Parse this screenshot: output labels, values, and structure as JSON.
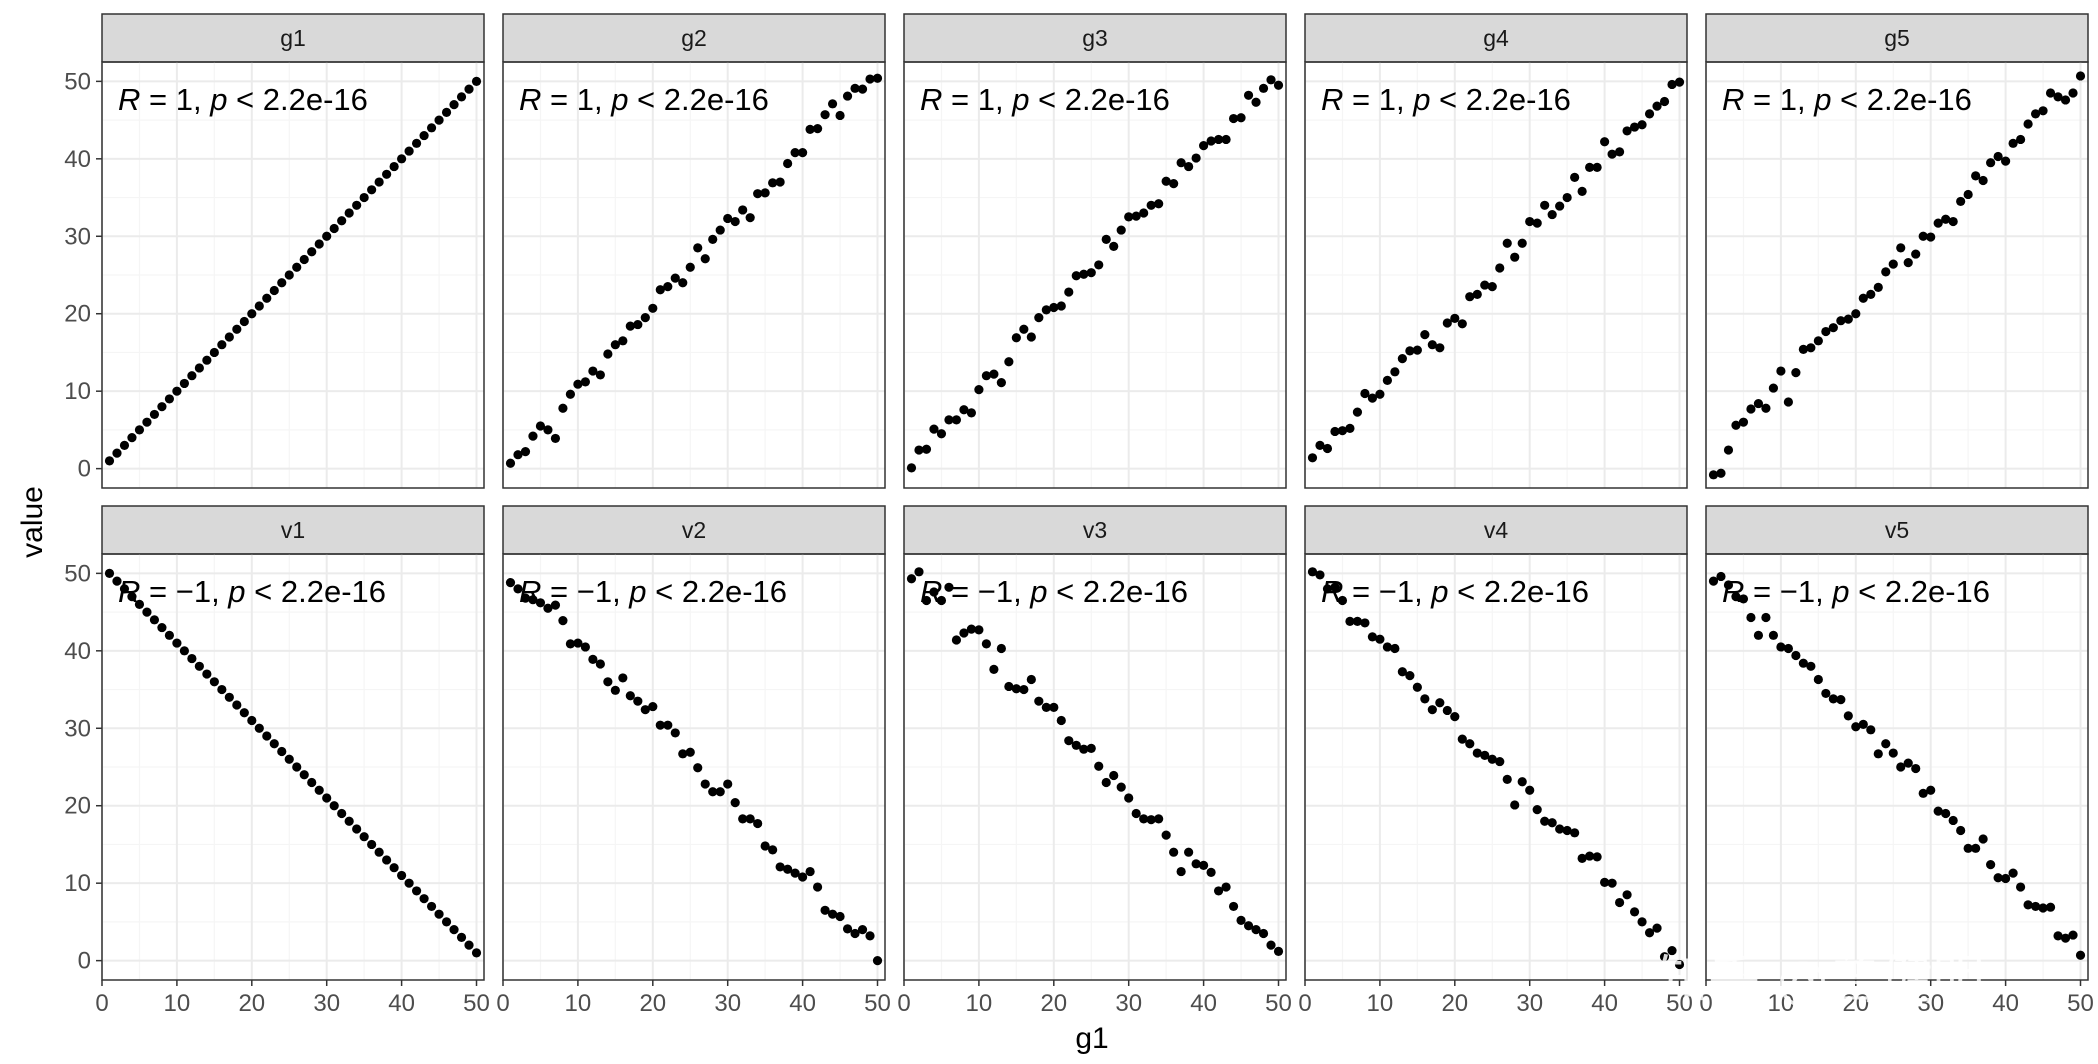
{
  "figure": {
    "x_title": "g1",
    "y_title": "value",
    "watermark": "知乎 @曾健明",
    "colors": {
      "background": "#ffffff",
      "panel_border": "#333333",
      "grid_major": "#ebebeb",
      "grid_minor": "#f5f5f5",
      "strip_fill": "#d9d9d9",
      "point": "#000000"
    }
  },
  "chart_data": [
    {
      "type": "scatter",
      "panel": "g1",
      "r_label": "R",
      "r_value": " = 1, ",
      "p_label": "p",
      "p_value": " < 2.2e-16",
      "xlim": [
        0,
        51
      ],
      "ylim": [
        -2.5,
        52.5
      ],
      "x_ticks": [
        "0",
        "10",
        "20",
        "30",
        "40",
        "50"
      ],
      "y_ticks": [
        "0",
        "10",
        "20",
        "30",
        "40",
        "50"
      ],
      "grid": true,
      "x": [
        1,
        2,
        3,
        4,
        5,
        6,
        7,
        8,
        9,
        10,
        11,
        12,
        13,
        14,
        15,
        16,
        17,
        18,
        19,
        20,
        21,
        22,
        23,
        24,
        25,
        26,
        27,
        28,
        29,
        30,
        31,
        32,
        33,
        34,
        35,
        36,
        37,
        38,
        39,
        40,
        41,
        42,
        43,
        44,
        45,
        46,
        47,
        48,
        49,
        50
      ],
      "y": [
        1,
        2,
        3,
        4,
        5,
        6,
        7,
        8,
        9,
        10,
        11,
        12,
        13,
        14,
        15,
        16,
        17,
        18,
        19,
        20,
        21,
        22,
        23,
        24,
        25,
        26,
        27,
        28,
        29,
        30,
        31,
        32,
        33,
        34,
        35,
        36,
        37,
        38,
        39,
        40,
        41,
        42,
        43,
        44,
        45,
        46,
        47,
        48,
        49,
        50
      ]
    },
    {
      "type": "scatter",
      "panel": "g2",
      "r_label": "R",
      "r_value": " = 1, ",
      "p_label": "p",
      "p_value": " < 2.2e-16",
      "xlim": [
        0,
        51
      ],
      "ylim": [
        -2.5,
        52.5
      ],
      "x_ticks": [
        "0",
        "10",
        "20",
        "30",
        "40",
        "50"
      ],
      "y_ticks": [
        "0",
        "10",
        "20",
        "30",
        "40",
        "50"
      ],
      "grid": true,
      "x": [
        1,
        2,
        3,
        4,
        5,
        6,
        7,
        8,
        9,
        10,
        11,
        12,
        13,
        14,
        15,
        16,
        17,
        18,
        19,
        20,
        21,
        22,
        23,
        24,
        25,
        26,
        27,
        28,
        29,
        30,
        31,
        32,
        33,
        34,
        35,
        36,
        37,
        38,
        39,
        40,
        41,
        42,
        43,
        44,
        45,
        46,
        47,
        48,
        49,
        50
      ],
      "y": [
        0.7,
        1.8,
        2.2,
        4.2,
        5.5,
        5.0,
        3.9,
        7.8,
        9.6,
        10.9,
        11.2,
        12.6,
        12.1,
        14.8,
        16.0,
        16.5,
        18.4,
        18.6,
        19.5,
        20.7,
        23.1,
        23.5,
        24.6,
        24.0,
        26.0,
        28.5,
        27.1,
        29.6,
        30.8,
        32.3,
        31.9,
        33.4,
        32.4,
        35.5,
        35.6,
        36.9,
        37.0,
        39.4,
        40.8,
        40.8,
        43.8,
        43.9,
        45.7,
        47.1,
        45.6,
        48.1,
        49.1,
        49.0,
        50.3,
        50.4
      ]
    },
    {
      "type": "scatter",
      "panel": "g3",
      "r_label": "R",
      "r_value": " = 1, ",
      "p_label": "p",
      "p_value": " < 2.2e-16",
      "xlim": [
        0,
        51
      ],
      "ylim": [
        -2.5,
        52.5
      ],
      "x_ticks": [
        "0",
        "10",
        "20",
        "30",
        "40",
        "50"
      ],
      "y_ticks": [
        "0",
        "10",
        "20",
        "30",
        "40",
        "50"
      ],
      "grid": true,
      "x": [
        1,
        2,
        3,
        4,
        5,
        6,
        7,
        8,
        9,
        10,
        11,
        12,
        13,
        14,
        15,
        16,
        17,
        18,
        19,
        20,
        21,
        22,
        23,
        24,
        25,
        26,
        27,
        28,
        29,
        30,
        31,
        32,
        33,
        34,
        35,
        36,
        37,
        38,
        39,
        40,
        41,
        42,
        43,
        44,
        45,
        46,
        47,
        48,
        49,
        50
      ],
      "y": [
        0.1,
        2.4,
        2.5,
        5.1,
        4.5,
        6.3,
        6.3,
        7.6,
        7.2,
        10.2,
        12.0,
        12.2,
        11.1,
        13.8,
        16.9,
        18.0,
        17.0,
        19.5,
        20.5,
        20.8,
        21.0,
        22.8,
        24.9,
        25.1,
        25.3,
        26.3,
        29.6,
        28.7,
        30.8,
        32.5,
        32.6,
        33.0,
        34.0,
        34.2,
        37.1,
        36.8,
        39.5,
        39.0,
        40.1,
        41.7,
        42.3,
        42.5,
        42.5,
        45.2,
        45.3,
        48.2,
        47.3,
        49.1,
        50.2,
        49.5
      ]
    },
    {
      "type": "scatter",
      "panel": "g4",
      "r_label": "R",
      "r_value": " = 1, ",
      "p_label": "p",
      "p_value": " < 2.2e-16",
      "xlim": [
        0,
        51
      ],
      "ylim": [
        -2.5,
        52.5
      ],
      "x_ticks": [
        "0",
        "10",
        "20",
        "30",
        "40",
        "50"
      ],
      "y_ticks": [
        "0",
        "10",
        "20",
        "30",
        "40",
        "50"
      ],
      "grid": true,
      "x": [
        1,
        2,
        3,
        4,
        5,
        6,
        7,
        8,
        9,
        10,
        11,
        12,
        13,
        14,
        15,
        16,
        17,
        18,
        19,
        20,
        21,
        22,
        23,
        24,
        25,
        26,
        27,
        28,
        29,
        30,
        31,
        32,
        33,
        34,
        35,
        36,
        37,
        38,
        39,
        40,
        41,
        42,
        43,
        44,
        45,
        46,
        47,
        48,
        49,
        50
      ],
      "y": [
        1.4,
        3.0,
        2.6,
        4.8,
        4.9,
        5.2,
        7.3,
        9.7,
        9.1,
        9.6,
        11.4,
        12.5,
        14.2,
        15.2,
        15.3,
        17.3,
        16.0,
        15.6,
        18.8,
        19.4,
        18.7,
        22.2,
        22.5,
        23.7,
        23.5,
        25.9,
        29.1,
        27.3,
        29.1,
        31.9,
        31.7,
        34.0,
        32.8,
        33.9,
        35.0,
        37.6,
        35.8,
        38.9,
        38.9,
        42.2,
        40.6,
        40.9,
        43.6,
        44.1,
        44.4,
        45.8,
        46.8,
        47.4,
        49.6,
        49.9
      ]
    },
    {
      "type": "scatter",
      "panel": "g5",
      "r_label": "R",
      "r_value": " = 1, ",
      "p_label": "p",
      "p_value": " < 2.2e-16",
      "xlim": [
        0,
        51
      ],
      "ylim": [
        -2.5,
        52.5
      ],
      "x_ticks": [
        "0",
        "10",
        "20",
        "30",
        "40",
        "50"
      ],
      "y_ticks": [
        "0",
        "10",
        "20",
        "30",
        "40",
        "50"
      ],
      "grid": true,
      "x": [
        1,
        2,
        3,
        4,
        5,
        6,
        7,
        8,
        9,
        10,
        11,
        12,
        13,
        14,
        15,
        16,
        17,
        18,
        19,
        20,
        21,
        22,
        23,
        24,
        25,
        26,
        27,
        28,
        29,
        30,
        31,
        32,
        33,
        34,
        35,
        36,
        37,
        38,
        39,
        40,
        41,
        42,
        43,
        44,
        45,
        46,
        47,
        48,
        49,
        50
      ],
      "y": [
        -0.8,
        -0.6,
        2.4,
        5.6,
        6.0,
        7.7,
        8.4,
        7.8,
        10.4,
        12.6,
        8.6,
        12.4,
        15.4,
        15.6,
        16.5,
        17.7,
        18.2,
        19.1,
        19.3,
        20.0,
        22.0,
        22.5,
        23.4,
        25.4,
        26.4,
        28.5,
        26.6,
        27.7,
        30.0,
        29.9,
        31.7,
        32.2,
        31.9,
        34.5,
        35.4,
        37.8,
        37.2,
        39.5,
        40.3,
        39.7,
        42.0,
        42.5,
        44.5,
        45.8,
        46.2,
        48.5,
        48.0,
        47.6,
        48.5,
        50.7
      ]
    },
    {
      "type": "scatter",
      "panel": "v1",
      "r_label": "R",
      "r_value": " = −1, ",
      "p_label": "p",
      "p_value": " < 2.2e-16",
      "xlim": [
        0,
        51
      ],
      "ylim": [
        -2.5,
        52.5
      ],
      "x_ticks": [
        "0",
        "10",
        "20",
        "30",
        "40",
        "50"
      ],
      "y_ticks": [
        "0",
        "10",
        "20",
        "30",
        "40",
        "50"
      ],
      "grid": true,
      "x": [
        1,
        2,
        3,
        4,
        5,
        6,
        7,
        8,
        9,
        10,
        11,
        12,
        13,
        14,
        15,
        16,
        17,
        18,
        19,
        20,
        21,
        22,
        23,
        24,
        25,
        26,
        27,
        28,
        29,
        30,
        31,
        32,
        33,
        34,
        35,
        36,
        37,
        38,
        39,
        40,
        41,
        42,
        43,
        44,
        45,
        46,
        47,
        48,
        49,
        50
      ],
      "y": [
        50,
        49,
        48,
        47,
        46,
        45,
        44,
        43,
        42,
        41,
        40,
        39,
        38,
        37,
        36,
        35,
        34,
        33,
        32,
        31,
        30,
        29,
        28,
        27,
        26,
        25,
        24,
        23,
        22,
        21,
        20,
        19,
        18,
        17,
        16,
        15,
        14,
        13,
        12,
        11,
        10,
        9,
        8,
        7,
        6,
        5,
        4,
        3,
        2,
        1
      ]
    },
    {
      "type": "scatter",
      "panel": "v2",
      "r_label": "R",
      "r_value": " = −1, ",
      "p_label": "p",
      "p_value": " < 2.2e-16",
      "xlim": [
        0,
        51
      ],
      "ylim": [
        -2.5,
        52.5
      ],
      "x_ticks": [
        "0",
        "10",
        "20",
        "30",
        "40",
        "50"
      ],
      "y_ticks": [
        "0",
        "10",
        "20",
        "30",
        "40",
        "50"
      ],
      "grid": true,
      "x": [
        1,
        2,
        3,
        4,
        5,
        6,
        7,
        8,
        9,
        10,
        11,
        12,
        13,
        14,
        15,
        16,
        17,
        18,
        19,
        20,
        21,
        22,
        23,
        24,
        25,
        26,
        27,
        28,
        29,
        30,
        31,
        32,
        33,
        34,
        35,
        36,
        37,
        38,
        39,
        40,
        41,
        42,
        43,
        44,
        45,
        46,
        47,
        48,
        49,
        50
      ],
      "y": [
        48.8,
        48.0,
        46.8,
        46.6,
        46.2,
        45.5,
        45.9,
        43.9,
        40.9,
        41.0,
        40.5,
        38.9,
        38.3,
        36.0,
        34.9,
        36.5,
        34.2,
        33.5,
        32.4,
        32.8,
        30.4,
        30.4,
        29.4,
        26.7,
        26.9,
        24.9,
        22.8,
        21.8,
        21.8,
        22.8,
        20.4,
        18.3,
        18.3,
        17.7,
        14.8,
        14.3,
        12.1,
        11.8,
        11.3,
        10.8,
        11.5,
        9.5,
        6.5,
        6.0,
        5.7,
        4.1,
        3.5,
        4.0,
        3.2,
        0.0
      ]
    },
    {
      "type": "scatter",
      "panel": "v3",
      "r_label": "R",
      "r_value": " = −1, ",
      "p_label": "p",
      "p_value": " < 2.2e-16",
      "xlim": [
        0,
        51
      ],
      "ylim": [
        -2.5,
        52.5
      ],
      "x_ticks": [
        "0",
        "10",
        "20",
        "30",
        "40",
        "50"
      ],
      "y_ticks": [
        "0",
        "10",
        "20",
        "30",
        "40",
        "50"
      ],
      "grid": true,
      "x": [
        1,
        2,
        3,
        4,
        5,
        6,
        7,
        8,
        9,
        10,
        11,
        12,
        13,
        14,
        15,
        16,
        17,
        18,
        19,
        20,
        21,
        22,
        23,
        24,
        25,
        26,
        27,
        28,
        29,
        30,
        31,
        32,
        33,
        34,
        35,
        36,
        37,
        38,
        39,
        40,
        41,
        42,
        43,
        44,
        45,
        46,
        47,
        48,
        49,
        50
      ],
      "y": [
        49.3,
        50.2,
        46.5,
        47.6,
        46.5,
        48.2,
        41.4,
        42.3,
        42.8,
        42.7,
        40.9,
        37.6,
        40.3,
        35.4,
        35.1,
        35.0,
        36.3,
        33.5,
        32.7,
        32.7,
        31.0,
        28.4,
        27.8,
        27.3,
        27.4,
        25.1,
        23.0,
        23.9,
        22.4,
        21.0,
        19.0,
        18.3,
        18.2,
        18.3,
        16.2,
        14.0,
        11.5,
        14.0,
        12.5,
        12.3,
        11.4,
        9.0,
        9.5,
        7.0,
        5.2,
        4.5,
        4.0,
        3.5,
        2.0,
        1.2
      ]
    },
    {
      "type": "scatter",
      "panel": "v4",
      "r_label": "R",
      "r_value": " = −1, ",
      "p_label": "p",
      "p_value": " < 2.2e-16",
      "xlim": [
        0,
        51
      ],
      "ylim": [
        -2.5,
        52.5
      ],
      "x_ticks": [
        "0",
        "10",
        "20",
        "30",
        "40",
        "50"
      ],
      "y_ticks": [
        "0",
        "10",
        "20",
        "30",
        "40",
        "50"
      ],
      "grid": true,
      "x": [
        1,
        2,
        3,
        4,
        5,
        6,
        7,
        8,
        9,
        10,
        11,
        12,
        13,
        14,
        15,
        16,
        17,
        18,
        19,
        20,
        21,
        22,
        23,
        24,
        25,
        26,
        27,
        28,
        29,
        30,
        31,
        32,
        33,
        34,
        35,
        36,
        37,
        38,
        39,
        40,
        41,
        42,
        43,
        44,
        45,
        46,
        47,
        48,
        49,
        50
      ],
      "y": [
        50.2,
        49.8,
        48.0,
        48.2,
        46.5,
        43.8,
        43.8,
        43.6,
        41.8,
        41.5,
        40.5,
        40.3,
        37.3,
        36.8,
        35.3,
        33.8,
        32.4,
        33.3,
        32.3,
        31.5,
        28.6,
        28.0,
        26.8,
        26.5,
        26.0,
        25.7,
        23.4,
        20.1,
        23.1,
        22.0,
        19.5,
        18.0,
        17.8,
        17.0,
        16.8,
        16.5,
        13.2,
        13.5,
        13.4,
        10.1,
        10.0,
        7.5,
        8.5,
        6.3,
        5.0,
        3.6,
        4.2,
        0.5,
        1.3,
        -0.5
      ]
    },
    {
      "type": "scatter",
      "panel": "v5",
      "r_label": "R",
      "r_value": " = −1, ",
      "p_label": "p",
      "p_value": " < 2.2e-16",
      "xlim": [
        0,
        51
      ],
      "ylim": [
        -2.5,
        52.5
      ],
      "x_ticks": [
        "0",
        "10",
        "20",
        "30",
        "40",
        "50"
      ],
      "y_ticks": [
        "0",
        "10",
        "20",
        "30",
        "40",
        "50"
      ],
      "grid": true,
      "x": [
        1,
        2,
        3,
        4,
        5,
        6,
        7,
        8,
        9,
        10,
        11,
        12,
        13,
        14,
        15,
        16,
        17,
        18,
        19,
        20,
        21,
        22,
        23,
        24,
        25,
        26,
        27,
        28,
        29,
        30,
        31,
        32,
        33,
        34,
        35,
        36,
        37,
        38,
        39,
        40,
        41,
        42,
        43,
        44,
        45,
        46,
        47,
        48,
        49,
        50
      ],
      "y": [
        49.0,
        49.6,
        48.5,
        47.0,
        46.7,
        44.3,
        42.0,
        44.3,
        42.0,
        40.5,
        40.3,
        39.4,
        38.4,
        38.0,
        36.3,
        34.5,
        33.8,
        33.7,
        31.6,
        30.2,
        30.5,
        29.8,
        26.7,
        28.0,
        26.8,
        25.0,
        25.5,
        24.8,
        21.6,
        22.0,
        19.3,
        19.0,
        18.1,
        16.8,
        14.5,
        14.5,
        15.7,
        12.4,
        10.7,
        10.6,
        11.3,
        9.5,
        7.2,
        7.0,
        6.8,
        6.9,
        3.2,
        2.9,
        3.3,
        0.7
      ]
    }
  ]
}
